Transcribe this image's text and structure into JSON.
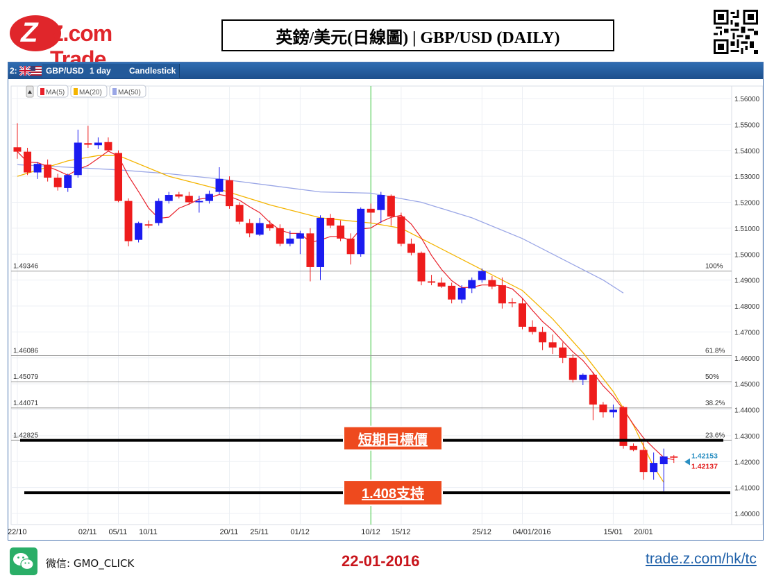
{
  "header": {
    "logo_text": "Z.com Trade",
    "title": "英鎊/美元(日線圖) | GBP/USD  (DAILY)"
  },
  "toolbar": {
    "index": "2:",
    "symbol": "GBP/USD",
    "timeframe": "1 day",
    "chart_style": "Candlestick"
  },
  "chart_data": {
    "type": "candlestick",
    "symbol": "GBP/USD",
    "interval": "1 day",
    "ylim": [
      1.395,
      1.562
    ],
    "y_ticks": [
      1.56,
      1.55,
      1.54,
      1.53,
      1.52,
      1.51,
      1.5,
      1.49,
      1.48,
      1.47,
      1.46,
      1.45,
      1.44,
      1.43,
      1.42,
      1.41,
      1.4
    ],
    "y_tick_labels": [
      "1.56000",
      "1.55000",
      "1.54000",
      "1.53000",
      "1.52000",
      "1.51000",
      "1.50000",
      "1.49000",
      "1.48000",
      "1.47000",
      "1.46000",
      "1.45000",
      "1.44000",
      "1.43000",
      "1.42000",
      "1.41000",
      "1.40000"
    ],
    "x_tick_labels": [
      {
        "label": "22/10",
        "index": 0
      },
      {
        "label": "02/11",
        "index": 7
      },
      {
        "label": "05/11",
        "index": 10
      },
      {
        "label": "10/11",
        "index": 13
      },
      {
        "label": "20/11",
        "index": 21
      },
      {
        "label": "25/11",
        "index": 24
      },
      {
        "label": "01/12",
        "index": 28
      },
      {
        "label": "10/12",
        "index": 35
      },
      {
        "label": "15/12",
        "index": 38
      },
      {
        "label": "25/12",
        "index": 46
      },
      {
        "label": "04/01/2016",
        "index": 50
      },
      {
        "label": "15/01",
        "index": 59
      },
      {
        "label": "20/01",
        "index": 62
      }
    ],
    "candles": [
      {
        "o": 1.5412,
        "h": 1.5505,
        "l": 1.5368,
        "c": 1.5395
      },
      {
        "o": 1.5395,
        "h": 1.541,
        "l": 1.5305,
        "c": 1.5315
      },
      {
        "o": 1.5315,
        "h": 1.5355,
        "l": 1.529,
        "c": 1.5348
      },
      {
        "o": 1.5345,
        "h": 1.5365,
        "l": 1.528,
        "c": 1.5295
      },
      {
        "o": 1.5295,
        "h": 1.531,
        "l": 1.5245,
        "c": 1.5258
      },
      {
        "o": 1.5255,
        "h": 1.531,
        "l": 1.524,
        "c": 1.5305
      },
      {
        "o": 1.5305,
        "h": 1.548,
        "l": 1.5295,
        "c": 1.543
      },
      {
        "o": 1.5428,
        "h": 1.5495,
        "l": 1.541,
        "c": 1.5422
      },
      {
        "o": 1.542,
        "h": 1.545,
        "l": 1.5405,
        "c": 1.543
      },
      {
        "o": 1.5432,
        "h": 1.545,
        "l": 1.5395,
        "c": 1.54
      },
      {
        "o": 1.539,
        "h": 1.54,
        "l": 1.52,
        "c": 1.5205
      },
      {
        "o": 1.5205,
        "h": 1.5215,
        "l": 1.503,
        "c": 1.505
      },
      {
        "o": 1.5055,
        "h": 1.5125,
        "l": 1.5045,
        "c": 1.512
      },
      {
        "o": 1.5115,
        "h": 1.513,
        "l": 1.51,
        "c": 1.511
      },
      {
        "o": 1.512,
        "h": 1.5215,
        "l": 1.511,
        "c": 1.5205
      },
      {
        "o": 1.5205,
        "h": 1.524,
        "l": 1.5195,
        "c": 1.5228
      },
      {
        "o": 1.523,
        "h": 1.524,
        "l": 1.5215,
        "c": 1.5222
      },
      {
        "o": 1.5225,
        "h": 1.524,
        "l": 1.519,
        "c": 1.52
      },
      {
        "o": 1.52,
        "h": 1.5225,
        "l": 1.516,
        "c": 1.5205
      },
      {
        "o": 1.5205,
        "h": 1.5245,
        "l": 1.5195,
        "c": 1.5232
      },
      {
        "o": 1.524,
        "h": 1.5335,
        "l": 1.523,
        "c": 1.529
      },
      {
        "o": 1.5285,
        "h": 1.53,
        "l": 1.5175,
        "c": 1.5185
      },
      {
        "o": 1.519,
        "h": 1.52,
        "l": 1.5115,
        "c": 1.5125
      },
      {
        "o": 1.512,
        "h": 1.5135,
        "l": 1.5065,
        "c": 1.508
      },
      {
        "o": 1.5075,
        "h": 1.514,
        "l": 1.507,
        "c": 1.512
      },
      {
        "o": 1.5115,
        "h": 1.513,
        "l": 1.509,
        "c": 1.51
      },
      {
        "o": 1.51,
        "h": 1.5115,
        "l": 1.503,
        "c": 1.504
      },
      {
        "o": 1.504,
        "h": 1.509,
        "l": 1.503,
        "c": 1.506
      },
      {
        "o": 1.506,
        "h": 1.509,
        "l": 1.5,
        "c": 1.508
      },
      {
        "o": 1.508,
        "h": 1.51,
        "l": 1.4895,
        "c": 1.495
      },
      {
        "o": 1.495,
        "h": 1.515,
        "l": 1.49,
        "c": 1.514
      },
      {
        "o": 1.514,
        "h": 1.5155,
        "l": 1.51,
        "c": 1.511
      },
      {
        "o": 1.511,
        "h": 1.513,
        "l": 1.505,
        "c": 1.506
      },
      {
        "o": 1.506,
        "h": 1.508,
        "l": 1.496,
        "c": 1.5
      },
      {
        "o": 1.5,
        "h": 1.518,
        "l": 1.499,
        "c": 1.5175
      },
      {
        "o": 1.5175,
        "h": 1.5195,
        "l": 1.512,
        "c": 1.516
      },
      {
        "o": 1.517,
        "h": 1.524,
        "l": 1.512,
        "c": 1.5228
      },
      {
        "o": 1.5225,
        "h": 1.523,
        "l": 1.511,
        "c": 1.5145
      },
      {
        "o": 1.5145,
        "h": 1.516,
        "l": 1.503,
        "c": 1.504
      },
      {
        "o": 1.504,
        "h": 1.506,
        "l": 1.4995,
        "c": 1.5005
      },
      {
        "o": 1.5005,
        "h": 1.501,
        "l": 1.488,
        "c": 1.4895
      },
      {
        "o": 1.4895,
        "h": 1.492,
        "l": 1.488,
        "c": 1.489
      },
      {
        "o": 1.489,
        "h": 1.491,
        "l": 1.487,
        "c": 1.4875
      },
      {
        "o": 1.4878,
        "h": 1.489,
        "l": 1.481,
        "c": 1.4825
      },
      {
        "o": 1.4825,
        "h": 1.488,
        "l": 1.481,
        "c": 1.487
      },
      {
        "o": 1.4868,
        "h": 1.491,
        "l": 1.485,
        "c": 1.49
      },
      {
        "o": 1.49,
        "h": 1.4945,
        "l": 1.489,
        "c": 1.4935
      },
      {
        "o": 1.49,
        "h": 1.4915,
        "l": 1.4865,
        "c": 1.4875
      },
      {
        "o": 1.488,
        "h": 1.491,
        "l": 1.479,
        "c": 1.481
      },
      {
        "o": 1.4815,
        "h": 1.483,
        "l": 1.4795,
        "c": 1.481
      },
      {
        "o": 1.481,
        "h": 1.483,
        "l": 1.471,
        "c": 1.472
      },
      {
        "o": 1.472,
        "h": 1.4745,
        "l": 1.469,
        "c": 1.47
      },
      {
        "o": 1.47,
        "h": 1.472,
        "l": 1.463,
        "c": 1.466
      },
      {
        "o": 1.466,
        "h": 1.469,
        "l": 1.4615,
        "c": 1.464
      },
      {
        "o": 1.464,
        "h": 1.466,
        "l": 1.458,
        "c": 1.46
      },
      {
        "o": 1.46,
        "h": 1.4615,
        "l": 1.4505,
        "c": 1.4515
      },
      {
        "o": 1.4515,
        "h": 1.454,
        "l": 1.4495,
        "c": 1.4535
      },
      {
        "o": 1.4535,
        "h": 1.4545,
        "l": 1.436,
        "c": 1.442
      },
      {
        "o": 1.442,
        "h": 1.443,
        "l": 1.437,
        "c": 1.439
      },
      {
        "o": 1.439,
        "h": 1.442,
        "l": 1.437,
        "c": 1.44
      },
      {
        "o": 1.441,
        "h": 1.4415,
        "l": 1.425,
        "c": 1.426
      },
      {
        "o": 1.426,
        "h": 1.427,
        "l": 1.424,
        "c": 1.4245
      },
      {
        "o": 1.4245,
        "h": 1.4275,
        "l": 1.413,
        "c": 1.416
      },
      {
        "o": 1.416,
        "h": 1.4235,
        "l": 1.413,
        "c": 1.4195
      },
      {
        "o": 1.419,
        "h": 1.425,
        "l": 1.4085,
        "c": 1.422
      },
      {
        "o": 1.422,
        "h": 1.4225,
        "l": 1.4195,
        "c": 1.4215
      }
    ],
    "moving_averages": [
      {
        "name": "MA(5)",
        "color": "#e8202a"
      },
      {
        "name": "MA(20)",
        "color": "#f4b400"
      },
      {
        "name": "MA(50)",
        "color": "#9aa6e6"
      }
    ],
    "ma50_points": [
      [
        0,
        1.5345
      ],
      [
        5,
        1.5335
      ],
      [
        10,
        1.5325
      ],
      [
        15,
        1.531
      ],
      [
        20,
        1.529
      ],
      [
        25,
        1.5265
      ],
      [
        30,
        1.524
      ],
      [
        35,
        1.5235
      ],
      [
        40,
        1.52
      ],
      [
        45,
        1.514
      ],
      [
        50,
        1.506
      ],
      [
        55,
        1.496
      ],
      [
        58,
        1.49
      ],
      [
        60,
        1.485
      ]
    ],
    "ma20_points": [
      [
        0,
        1.53
      ],
      [
        5,
        1.536
      ],
      [
        8,
        1.538
      ],
      [
        10,
        1.538
      ],
      [
        15,
        1.53
      ],
      [
        20,
        1.525
      ],
      [
        25,
        1.519
      ],
      [
        30,
        1.514
      ],
      [
        35,
        1.512
      ],
      [
        38,
        1.51
      ],
      [
        40,
        1.506
      ],
      [
        45,
        1.496
      ],
      [
        50,
        1.486
      ],
      [
        53,
        1.475
      ],
      [
        56,
        1.462
      ],
      [
        59,
        1.447
      ],
      [
        61,
        1.434
      ],
      [
        62,
        1.426
      ],
      [
        63,
        1.418
      ],
      [
        64,
        1.412
      ]
    ],
    "fibonacci": [
      {
        "price_label": "1.49346",
        "value": 1.49346,
        "pct": "100%"
      },
      {
        "price_label": "1.46086",
        "value": 1.46086,
        "pct": "61.8%"
      },
      {
        "price_label": "1.45079",
        "value": 1.45079,
        "pct": "50%"
      },
      {
        "price_label": "1.44071",
        "value": 1.44071,
        "pct": "38.2%"
      },
      {
        "price_label": "1.42825",
        "value": 1.42825,
        "pct": "23.6%"
      }
    ],
    "annotations": [
      {
        "text": "短期目標價",
        "value": 1.4282
      },
      {
        "text": "1.408支持",
        "value": 1.408
      }
    ],
    "vertical_marker_index": 35,
    "last_price_blue": "1.42153",
    "last_price_red": "1.42137",
    "last_price_blue_value": 1.42153,
    "last_price_red_value": 1.42137
  },
  "footer": {
    "wechat_label": "微信: GMO_CLICK",
    "date": "22-01-2016",
    "url": "trade.z.com/hk/tc"
  },
  "colors": {
    "bull": "#1b1bf0",
    "bear": "#ee1c1c",
    "annotation_bg": "#ee4a1e",
    "brand_red": "#e0262b"
  }
}
